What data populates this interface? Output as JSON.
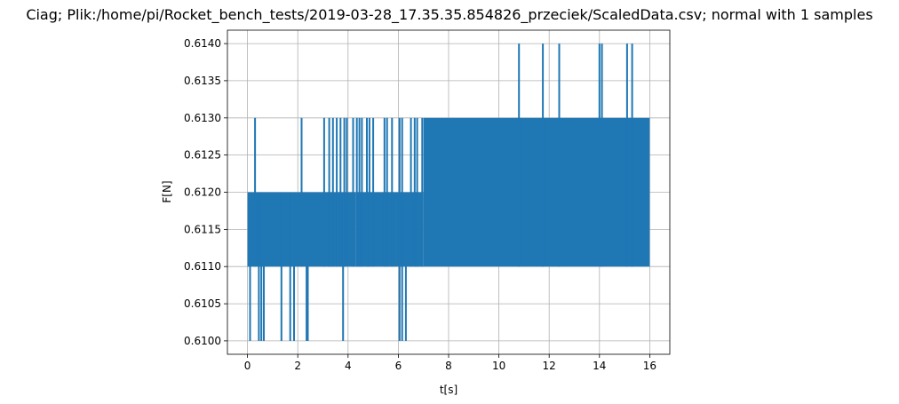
{
  "chart_data": {
    "type": "line",
    "title": "Ciag; Plik:/home/pi/Rocket_bench_tests/2019-03-28_17.35.35.854826_przeciek/ScaledData.csv; normal with 1 samples",
    "xlabel": "t[s]",
    "ylabel": "F[N]",
    "xlim": [
      -0.8,
      16.8
    ],
    "ylim": [
      0.60982,
      0.61418
    ],
    "x_ticks": [
      0,
      2,
      4,
      6,
      8,
      10,
      12,
      14,
      16
    ],
    "x_tick_labels": [
      "0",
      "2",
      "4",
      "6",
      "8",
      "10",
      "12",
      "14",
      "16"
    ],
    "y_ticks": [
      0.61,
      0.6105,
      0.611,
      0.6115,
      0.612,
      0.6125,
      0.613,
      0.6135,
      0.614
    ],
    "y_tick_labels": [
      "0.6100",
      "0.6105",
      "0.6110",
      "0.6115",
      "0.6120",
      "0.6125",
      "0.6130",
      "0.6135",
      "0.6140"
    ],
    "grid": true,
    "series_color": "#1f77b4",
    "series": [
      {
        "x_range": [
          0,
          16
        ],
        "segments": [
          {
            "x": [
              0.0,
              4.3
            ],
            "low": 0.611,
            "high": 0.612
          },
          {
            "x": [
              4.3,
              7.0
            ],
            "low": 0.611,
            "high": 0.612
          },
          {
            "x": [
              7.0,
              16.0
            ],
            "low": 0.611,
            "high": 0.613
          }
        ],
        "spikes_0613": [
          0.3,
          2.15,
          3.05,
          3.25,
          3.4,
          3.55,
          3.7,
          3.85,
          3.95,
          4.2,
          4.35,
          4.45,
          4.55,
          4.75,
          4.85,
          5.0,
          5.45,
          5.55,
          5.75,
          6.05,
          6.15,
          6.5,
          6.65,
          6.75,
          6.95
        ],
        "spikes_0614": [
          10.8,
          11.75,
          12.4,
          14.0,
          14.1,
          15.1,
          15.3
        ],
        "dips_0610": [
          0.1,
          0.45,
          0.55,
          0.65,
          1.35,
          1.7,
          1.85,
          2.35,
          2.4,
          3.8,
          6.05,
          6.15,
          6.3
        ]
      }
    ]
  }
}
